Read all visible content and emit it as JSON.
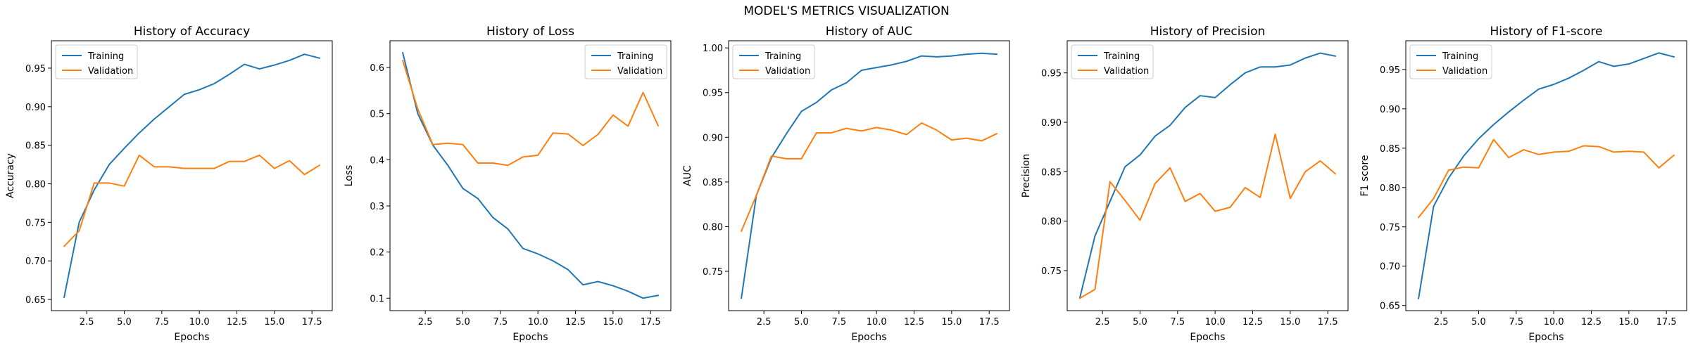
{
  "suptitle": "MODEL'S METRICS VISUALIZATION",
  "colors": {
    "training": "#1f77b4",
    "validation": "#ff7f0e"
  },
  "chart_data": [
    {
      "type": "line",
      "title": "History of Accuracy",
      "xlabel": "Epochs",
      "ylabel": "Accuracy",
      "xlim": [
        0.15,
        18.85
      ],
      "ylim": [
        0.6355,
        0.9855
      ],
      "xticks": [
        2.5,
        5.0,
        7.5,
        10.0,
        12.5,
        15.0,
        17.5
      ],
      "xticklabels": [
        "2.5",
        "5.0",
        "7.5",
        "10.0",
        "12.5",
        "15.0",
        "17.5"
      ],
      "yticks": [
        0.65,
        0.7,
        0.75,
        0.8,
        0.85,
        0.9,
        0.95
      ],
      "yticklabels": [
        "0.65",
        "0.70",
        "0.75",
        "0.80",
        "0.85",
        "0.90",
        "0.95"
      ],
      "legend_position": "upper-left",
      "x": [
        1,
        2,
        3,
        4,
        5,
        6,
        7,
        8,
        9,
        10,
        11,
        12,
        13,
        14,
        15,
        16,
        17,
        18
      ],
      "series": [
        {
          "name": "Training",
          "values": [
            0.653,
            0.75,
            0.792,
            0.825,
            0.846,
            0.866,
            0.884,
            0.9,
            0.916,
            0.922,
            0.93,
            0.942,
            0.955,
            0.949,
            0.954,
            0.96,
            0.968,
            0.963
          ]
        },
        {
          "name": "Validation",
          "values": [
            0.719,
            0.739,
            0.801,
            0.801,
            0.797,
            0.837,
            0.822,
            0.822,
            0.82,
            0.82,
            0.82,
            0.829,
            0.829,
            0.837,
            0.82,
            0.83,
            0.812,
            0.824
          ]
        }
      ]
    },
    {
      "type": "line",
      "title": "History of Loss",
      "xlabel": "Epochs",
      "ylabel": "Loss",
      "xlim": [
        0.15,
        18.85
      ],
      "ylim": [
        0.073,
        0.658
      ],
      "xticks": [
        2.5,
        5.0,
        7.5,
        10.0,
        12.5,
        15.0,
        17.5
      ],
      "xticklabels": [
        "2.5",
        "5.0",
        "7.5",
        "10.0",
        "12.5",
        "15.0",
        "17.5"
      ],
      "yticks": [
        0.1,
        0.2,
        0.3,
        0.4,
        0.5,
        0.6
      ],
      "yticklabels": [
        "0.1",
        "0.2",
        "0.3",
        "0.4",
        "0.5",
        "0.6"
      ],
      "legend_position": "upper-right",
      "x": [
        1,
        2,
        3,
        4,
        5,
        6,
        7,
        8,
        9,
        10,
        11,
        12,
        13,
        14,
        15,
        16,
        17,
        18
      ],
      "series": [
        {
          "name": "Training",
          "values": [
            0.632,
            0.5,
            0.432,
            0.388,
            0.338,
            0.316,
            0.275,
            0.25,
            0.208,
            0.196,
            0.181,
            0.162,
            0.129,
            0.136,
            0.127,
            0.115,
            0.1,
            0.106
          ]
        },
        {
          "name": "Validation",
          "values": [
            0.615,
            0.51,
            0.433,
            0.436,
            0.433,
            0.393,
            0.393,
            0.388,
            0.406,
            0.41,
            0.458,
            0.456,
            0.431,
            0.455,
            0.497,
            0.473,
            0.546,
            0.474
          ]
        }
      ]
    },
    {
      "type": "line",
      "title": "History of AUC",
      "xlabel": "Epochs",
      "ylabel": "AUC",
      "xlim": [
        0.15,
        18.85
      ],
      "ylim": [
        0.706,
        1.008
      ],
      "xticks": [
        2.5,
        5.0,
        7.5,
        10.0,
        12.5,
        15.0,
        17.5
      ],
      "xticklabels": [
        "2.5",
        "5.0",
        "7.5",
        "10.0",
        "12.5",
        "15.0",
        "17.5"
      ],
      "yticks": [
        0.75,
        0.8,
        0.85,
        0.9,
        0.95,
        1.0
      ],
      "yticklabels": [
        "0.75",
        "0.80",
        "0.85",
        "0.90",
        "0.95",
        "1.00"
      ],
      "legend_position": "upper-left",
      "x": [
        1,
        2,
        3,
        4,
        5,
        6,
        7,
        8,
        9,
        10,
        11,
        12,
        13,
        14,
        15,
        16,
        17,
        18
      ],
      "series": [
        {
          "name": "Training",
          "values": [
            0.72,
            0.835,
            0.877,
            0.904,
            0.929,
            0.939,
            0.953,
            0.961,
            0.975,
            0.978,
            0.981,
            0.985,
            0.991,
            0.99,
            0.991,
            0.993,
            0.994,
            0.993
          ]
        },
        {
          "name": "Validation",
          "values": [
            0.795,
            0.835,
            0.879,
            0.876,
            0.876,
            0.905,
            0.905,
            0.91,
            0.907,
            0.911,
            0.908,
            0.903,
            0.916,
            0.908,
            0.897,
            0.899,
            0.896,
            0.904
          ]
        }
      ]
    },
    {
      "type": "line",
      "title": "History of Precision",
      "xlabel": "Epochs",
      "ylabel": "Precision",
      "xlim": [
        0.15,
        18.85
      ],
      "ylim": [
        0.7095,
        0.9825
      ],
      "xticks": [
        2.5,
        5.0,
        7.5,
        10.0,
        12.5,
        15.0,
        17.5
      ],
      "xticklabels": [
        "2.5",
        "5.0",
        "7.5",
        "10.0",
        "12.5",
        "15.0",
        "17.5"
      ],
      "yticks": [
        0.75,
        0.8,
        0.85,
        0.9,
        0.95
      ],
      "yticklabels": [
        "0.75",
        "0.80",
        "0.85",
        "0.90",
        "0.95"
      ],
      "legend_position": "upper-left",
      "x": [
        1,
        2,
        3,
        4,
        5,
        6,
        7,
        8,
        9,
        10,
        11,
        12,
        13,
        14,
        15,
        16,
        17,
        18
      ],
      "series": [
        {
          "name": "Training",
          "values": [
            0.723,
            0.785,
            0.82,
            0.855,
            0.867,
            0.886,
            0.897,
            0.915,
            0.927,
            0.925,
            0.938,
            0.95,
            0.956,
            0.956,
            0.958,
            0.965,
            0.97,
            0.967
          ]
        },
        {
          "name": "Validation",
          "values": [
            0.722,
            0.731,
            0.84,
            0.821,
            0.801,
            0.838,
            0.854,
            0.82,
            0.828,
            0.81,
            0.814,
            0.834,
            0.824,
            0.888,
            0.823,
            0.85,
            0.861,
            0.848
          ]
        }
      ]
    },
    {
      "type": "line",
      "title": "History of F1-score",
      "xlabel": "Epochs",
      "ylabel": "F1 score",
      "xlim": [
        0.15,
        18.85
      ],
      "ylim": [
        0.6435,
        0.9865
      ],
      "xticks": [
        2.5,
        5.0,
        7.5,
        10.0,
        12.5,
        15.0,
        17.5
      ],
      "xticklabels": [
        "2.5",
        "5.0",
        "7.5",
        "10.0",
        "12.5",
        "15.0",
        "17.5"
      ],
      "yticks": [
        0.65,
        0.7,
        0.75,
        0.8,
        0.85,
        0.9,
        0.95
      ],
      "yticklabels": [
        "0.65",
        "0.70",
        "0.75",
        "0.80",
        "0.85",
        "0.90",
        "0.95"
      ],
      "legend_position": "upper-left",
      "x": [
        1,
        2,
        3,
        4,
        5,
        6,
        7,
        8,
        9,
        10,
        11,
        12,
        13,
        14,
        15,
        16,
        17,
        18
      ],
      "series": [
        {
          "name": "Training",
          "values": [
            0.659,
            0.776,
            0.812,
            0.84,
            0.862,
            0.88,
            0.896,
            0.911,
            0.925,
            0.931,
            0.939,
            0.949,
            0.96,
            0.954,
            0.957,
            0.964,
            0.971,
            0.966
          ]
        },
        {
          "name": "Validation",
          "values": [
            0.762,
            0.786,
            0.822,
            0.826,
            0.825,
            0.861,
            0.838,
            0.848,
            0.842,
            0.845,
            0.846,
            0.853,
            0.852,
            0.845,
            0.846,
            0.845,
            0.825,
            0.841
          ]
        }
      ]
    }
  ]
}
